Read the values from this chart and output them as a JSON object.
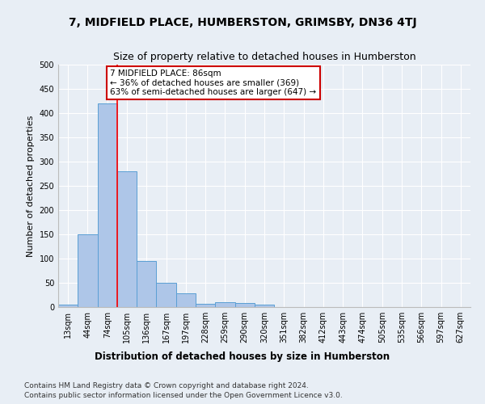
{
  "title": "7, MIDFIELD PLACE, HUMBERSTON, GRIMSBY, DN36 4TJ",
  "subtitle": "Size of property relative to detached houses in Humberston",
  "xlabel": "Distribution of detached houses by size in Humberston",
  "ylabel": "Number of detached properties",
  "footnote1": "Contains HM Land Registry data © Crown copyright and database right 2024.",
  "footnote2": "Contains public sector information licensed under the Open Government Licence v3.0.",
  "bin_labels": [
    "13sqm",
    "44sqm",
    "74sqm",
    "105sqm",
    "136sqm",
    "167sqm",
    "197sqm",
    "228sqm",
    "259sqm",
    "290sqm",
    "320sqm",
    "351sqm",
    "382sqm",
    "412sqm",
    "443sqm",
    "474sqm",
    "505sqm",
    "535sqm",
    "566sqm",
    "597sqm",
    "627sqm"
  ],
  "bar_values": [
    5,
    150,
    420,
    280,
    95,
    50,
    28,
    7,
    10,
    8,
    5,
    0,
    0,
    0,
    0,
    0,
    0,
    0,
    0,
    0,
    0
  ],
  "bar_color": "#aec6e8",
  "bar_edge_color": "#5a9fd4",
  "red_line_bin_index": 2,
  "annotation_line1": "7 MIDFIELD PLACE: 86sqm",
  "annotation_line2": "← 36% of detached houses are smaller (369)",
  "annotation_line3": "63% of semi-detached houses are larger (647) →",
  "annotation_box_color": "#ffffff",
  "annotation_box_edge": "#cc0000",
  "ylim": [
    0,
    500
  ],
  "yticks": [
    0,
    50,
    100,
    150,
    200,
    250,
    300,
    350,
    400,
    450,
    500
  ],
  "background_color": "#e8eef5",
  "plot_bg_color": "#e8eef5",
  "title_fontsize": 10,
  "subtitle_fontsize": 9,
  "xlabel_fontsize": 8.5,
  "ylabel_fontsize": 8,
  "tick_fontsize": 7,
  "footnote_fontsize": 6.5,
  "annotation_fontsize": 7.5
}
